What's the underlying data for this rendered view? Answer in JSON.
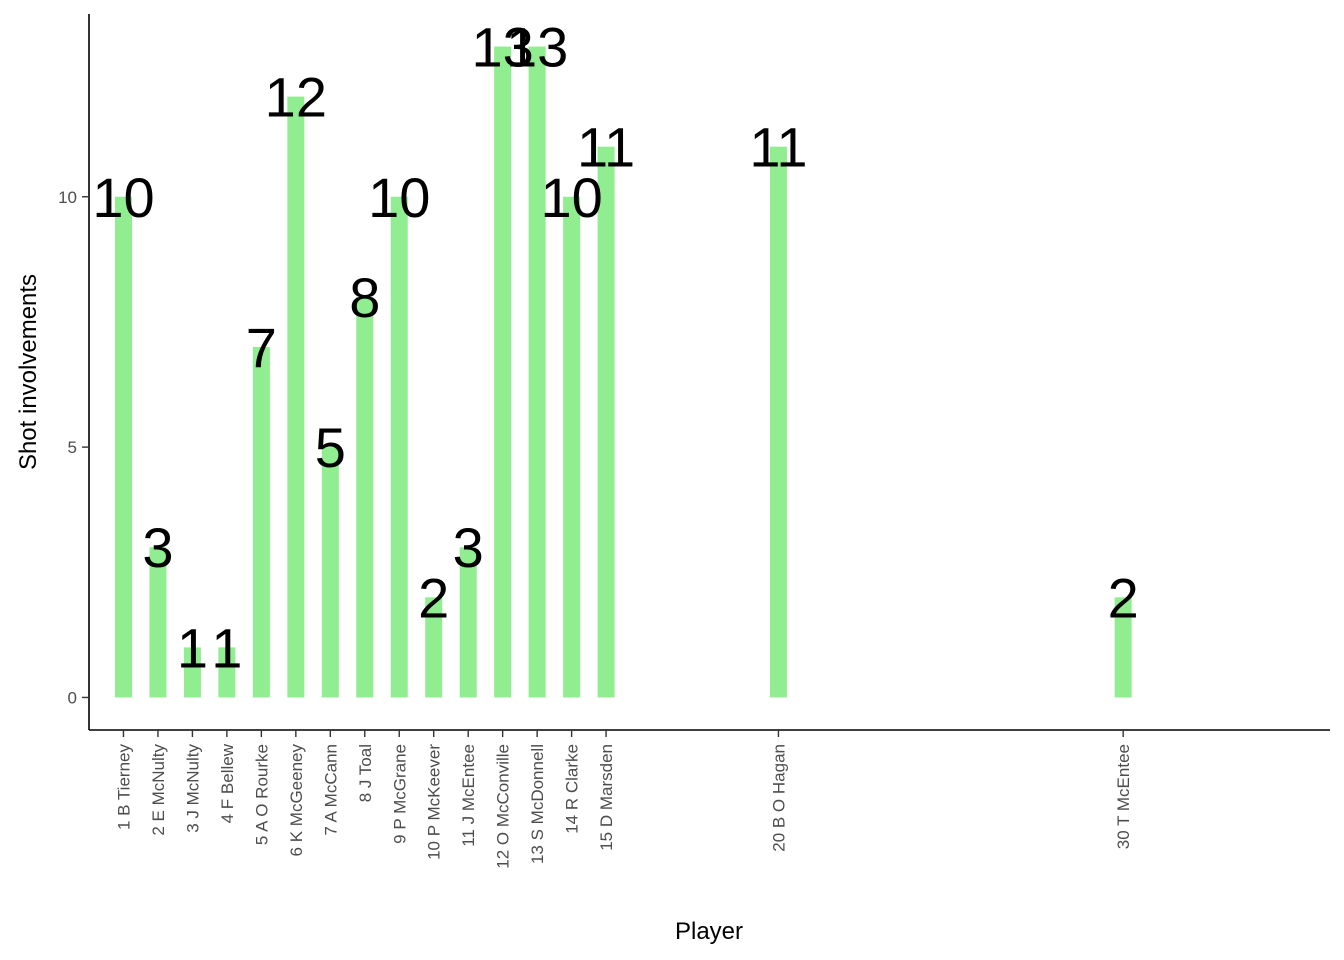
{
  "chart_data": {
    "type": "bar",
    "xlabel": "Player",
    "ylabel": "Shot involvements",
    "ylim": [
      -0.65,
      13.65
    ],
    "y_ticks": [
      0,
      5,
      10
    ],
    "grid": false,
    "legend": "none",
    "bar_color": "#90EE90",
    "x_range": [
      0,
      36
    ],
    "points": [
      {
        "x": 1,
        "label": "1 B Tierney",
        "value": 10
      },
      {
        "x": 2,
        "label": "2 E McNulty",
        "value": 3
      },
      {
        "x": 3,
        "label": "3 J McNulty",
        "value": 1
      },
      {
        "x": 4,
        "label": "4 F Bellew",
        "value": 1
      },
      {
        "x": 5,
        "label": "5 A O Rourke",
        "value": 7
      },
      {
        "x": 6,
        "label": "6 K McGeeney",
        "value": 12
      },
      {
        "x": 7,
        "label": "7 A McCann",
        "value": 5
      },
      {
        "x": 8,
        "label": "8 J Toal",
        "value": 8
      },
      {
        "x": 9,
        "label": "9 P McGrane",
        "value": 10
      },
      {
        "x": 10,
        "label": "10 P McKeever",
        "value": 2
      },
      {
        "x": 11,
        "label": "11 J McEntee",
        "value": 3
      },
      {
        "x": 12,
        "label": "12 O McConville",
        "value": 13
      },
      {
        "x": 13,
        "label": "13 S McDonnell",
        "value": 13
      },
      {
        "x": 14,
        "label": "14 R Clarke",
        "value": 10
      },
      {
        "x": 15,
        "label": "15 D Marsden",
        "value": 11
      },
      {
        "x": 20,
        "label": "20 B O Hagan",
        "value": 11
      },
      {
        "x": 30,
        "label": "30 T McEntee",
        "value": 2
      }
    ]
  }
}
